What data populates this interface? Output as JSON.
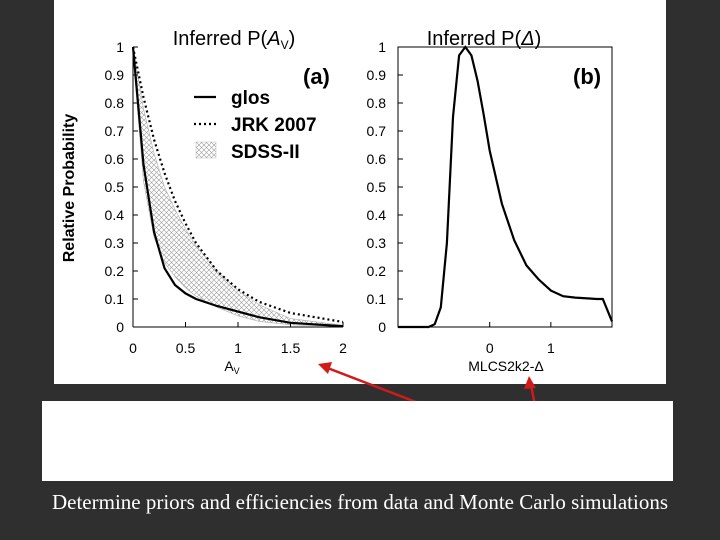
{
  "slide": {
    "caption": "Determine priors and efficiencies from data and Monte Carlo simulations"
  },
  "chart_data": [
    {
      "type": "line",
      "panel_label": "(a)",
      "title_prefix": "Inferred P(",
      "title_var": "A",
      "title_sub": "V",
      "title_suffix": ")",
      "xlabel": "A",
      "xlabel_sub": "V",
      "ylabel": "Relative Probability",
      "xlim": [
        0,
        2
      ],
      "ylim": [
        0,
        1
      ],
      "xticks": [
        "0",
        "0.5",
        "1",
        "1.5",
        "2"
      ],
      "yticks": [
        "0",
        "0.1",
        "0.2",
        "0.3",
        "0.4",
        "0.5",
        "0.6",
        "0.7",
        "0.8",
        "0.9",
        "1"
      ],
      "legend_position": "top-right",
      "series": [
        {
          "name": "glos",
          "style": "solid",
          "x": [
            0,
            0.1,
            0.2,
            0.3,
            0.4,
            0.5,
            0.6,
            0.8,
            1.0,
            1.2,
            1.5,
            2.0
          ],
          "y": [
            1.0,
            0.58,
            0.34,
            0.21,
            0.15,
            0.12,
            0.1,
            0.075,
            0.055,
            0.035,
            0.015,
            0.003
          ]
        },
        {
          "name": "JRK 2007",
          "style": "dotted",
          "x": [
            0,
            0.1,
            0.2,
            0.3,
            0.4,
            0.5,
            0.6,
            0.8,
            1.0,
            1.2,
            1.5,
            2.0
          ],
          "y": [
            1.0,
            0.82,
            0.67,
            0.55,
            0.45,
            0.37,
            0.3,
            0.2,
            0.135,
            0.09,
            0.05,
            0.018
          ]
        },
        {
          "name": "SDSS-II",
          "style": "hatched band",
          "x": [
            0,
            0.1,
            0.2,
            0.3,
            0.4,
            0.5,
            0.6,
            0.8,
            1.0,
            1.2,
            1.5,
            2.0
          ],
          "lower": [
            0.97,
            0.52,
            0.32,
            0.23,
            0.18,
            0.14,
            0.11,
            0.07,
            0.04,
            0.02,
            0.008,
            0.002
          ],
          "upper": [
            1.0,
            0.78,
            0.62,
            0.5,
            0.42,
            0.35,
            0.29,
            0.2,
            0.13,
            0.08,
            0.03,
            0.006
          ]
        }
      ]
    },
    {
      "type": "line",
      "panel_label": "(b)",
      "title_prefix": "Inferred P(",
      "title_var": "Δ",
      "title_suffix": ")",
      "xlabel": "MLCS2k2-Δ",
      "xlim": [
        -1.5,
        2
      ],
      "ylim": [
        0,
        1
      ],
      "xticks": [
        "0",
        "1"
      ],
      "xtick_values": [
        0,
        1
      ],
      "yticks": [
        "0",
        "0.1",
        "0.2",
        "0.3",
        "0.4",
        "0.5",
        "0.6",
        "0.7",
        "0.8",
        "0.9",
        "1"
      ],
      "series": [
        {
          "name": "P(Δ)",
          "style": "solid",
          "x": [
            -1.5,
            -1.0,
            -0.9,
            -0.8,
            -0.7,
            -0.6,
            -0.5,
            -0.4,
            -0.3,
            -0.2,
            -0.1,
            0.0,
            0.2,
            0.4,
            0.6,
            0.8,
            1.0,
            1.2,
            1.4,
            1.6,
            1.75,
            1.85,
            2.0
          ],
          "y": [
            0.0,
            0.0,
            0.01,
            0.07,
            0.3,
            0.75,
            0.97,
            1.0,
            0.97,
            0.88,
            0.76,
            0.63,
            0.44,
            0.31,
            0.22,
            0.17,
            0.13,
            0.11,
            0.105,
            0.102,
            0.1,
            0.1,
            0.02
          ]
        }
      ]
    }
  ]
}
